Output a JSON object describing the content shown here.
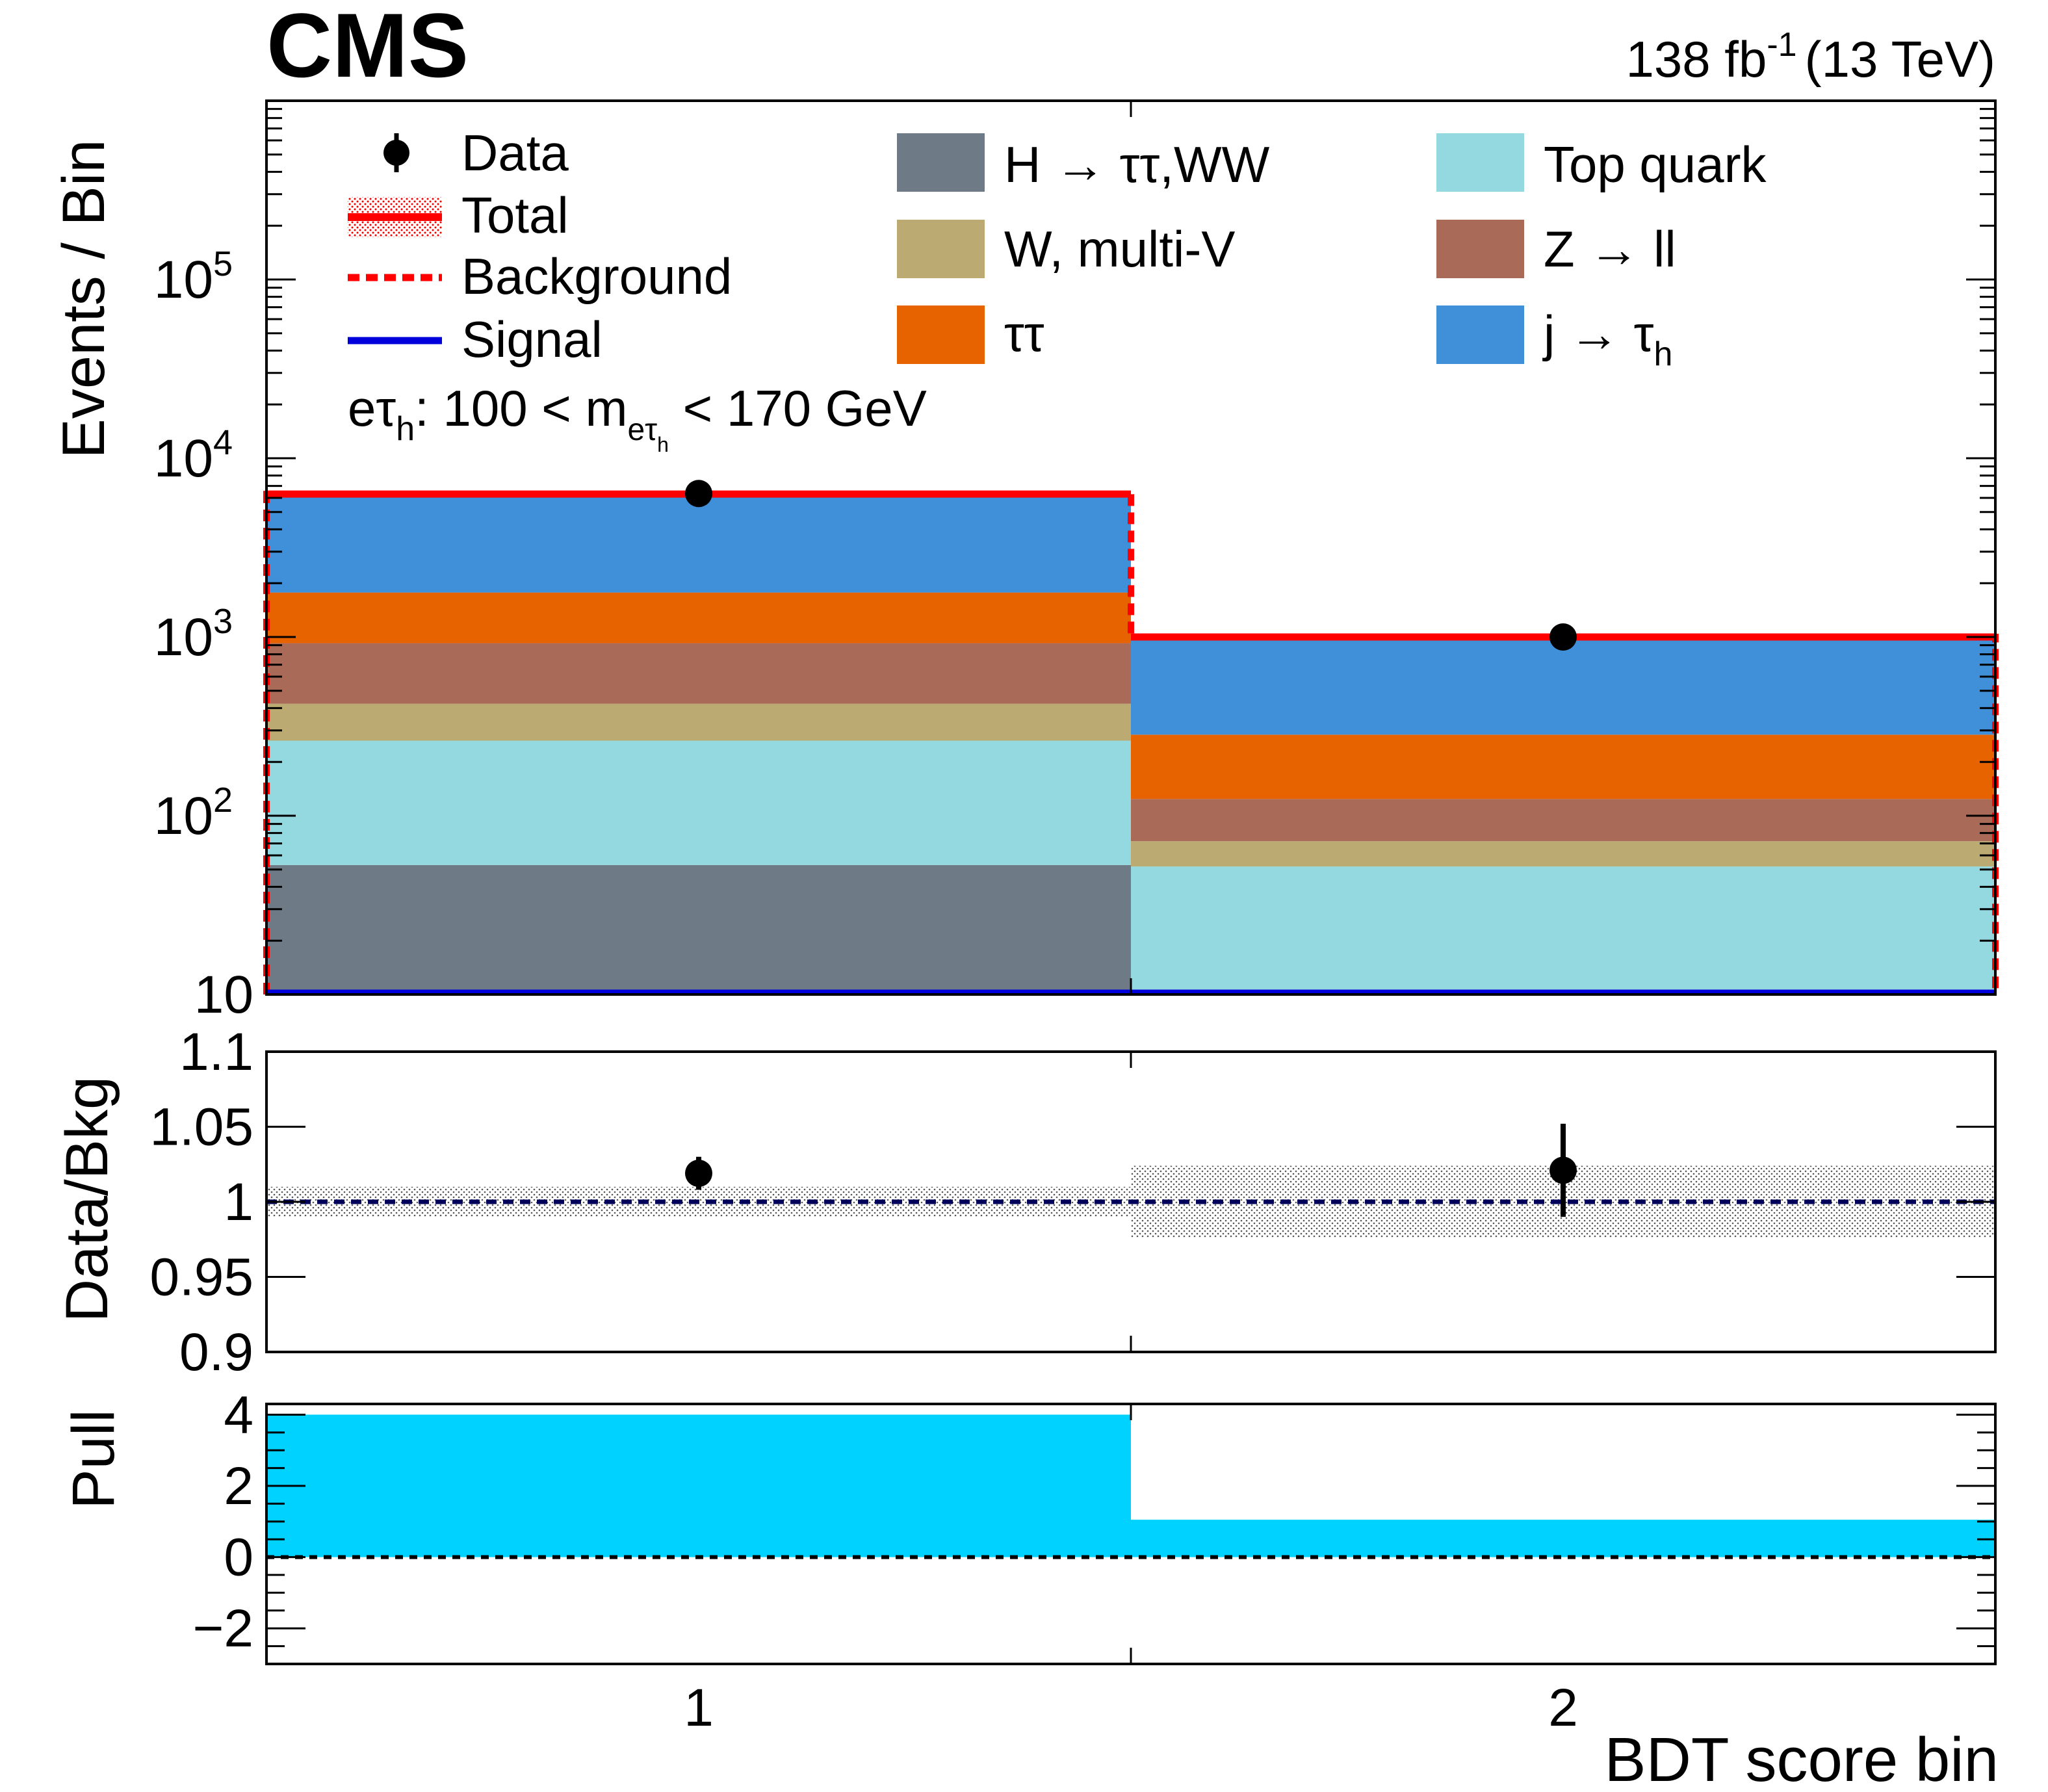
{
  "header": {
    "experiment": "CMS",
    "lumi_value": "138 fb",
    "lumi_exp": "-1",
    "energy": "(13 TeV)"
  },
  "colors": {
    "data": "#000000",
    "total": "#ff0000",
    "background": "#ff0000",
    "signal": "#0000dd",
    "higgs": "#6e7b87",
    "w_multiv": "#bbab73",
    "tautau": "#e76300",
    "top": "#94d9e0",
    "zll": "#a96a58",
    "fake": "#3f8fd9",
    "pull": "#00d2ff"
  },
  "chart_data": [
    {
      "type": "bar",
      "stacked": true,
      "log_y": true,
      "ylabel": "Events / Bin",
      "ylim": [
        10,
        1000000
      ],
      "y_tick_labels": [
        "10",
        "10",
        "10",
        "10",
        "10"
      ],
      "y_tick_exps": [
        "",
        "2",
        "3",
        "4",
        "5"
      ],
      "categories": [
        "1",
        "2"
      ],
      "annotation": {
        "pre": "eτ",
        "pre_sub": "h",
        "mid": ": 100 < m",
        "m_sub": "eτ",
        "m_subsub": "h",
        "post": " < 170 GeV"
      },
      "series": [
        {
          "key": "higgs",
          "name": "H → ττ,WW",
          "values": [
            53,
            0
          ]
        },
        {
          "key": "top",
          "name": "Top quark",
          "values": [
            210,
            52
          ]
        },
        {
          "key": "w_multiv",
          "name": "W, multi-V",
          "values": [
            160,
            20
          ]
        },
        {
          "key": "zll",
          "name": "Z → ll",
          "values": [
            500,
            52
          ]
        },
        {
          "key": "tautau",
          "name": "ττ",
          "values": [
            850,
            160
          ]
        },
        {
          "key": "fake",
          "name": "j → τ",
          "name_sub": "h",
          "values": [
            4400,
            710
          ]
        }
      ],
      "total": [
        6300,
        1000
      ],
      "background": [
        6300,
        1000
      ],
      "signal": [
        10,
        10
      ],
      "data": [
        6350,
        1000
      ],
      "legend": {
        "data": "Data",
        "total": "Total",
        "background": "Background",
        "signal": "Signal"
      }
    },
    {
      "type": "scatter",
      "ylabel": "Data/Bkg",
      "ylim": [
        0.9,
        1.1
      ],
      "y_tick_labels": [
        "0.9",
        "0.95",
        "1",
        "1.05",
        "1.1"
      ],
      "y_tick_values": [
        0.9,
        0.95,
        1.0,
        1.05,
        1.1
      ],
      "x": [
        1,
        2
      ],
      "values": [
        1.019,
        1.021
      ],
      "errors": [
        0.011,
        0.031
      ],
      "uncertainty_band": [
        0.01,
        0.024
      ]
    },
    {
      "type": "bar",
      "ylabel": "Pull",
      "ylim": [
        -3,
        4.3
      ],
      "y_tick_labels": [
        "−2",
        "0",
        "2",
        "4"
      ],
      "y_tick_values": [
        -2,
        0,
        2,
        4
      ],
      "categories": [
        "1",
        "2"
      ],
      "values": [
        4.0,
        1.05
      ],
      "xlabel": "BDT score bin",
      "x_tick_labels": [
        "1",
        "2"
      ]
    }
  ]
}
